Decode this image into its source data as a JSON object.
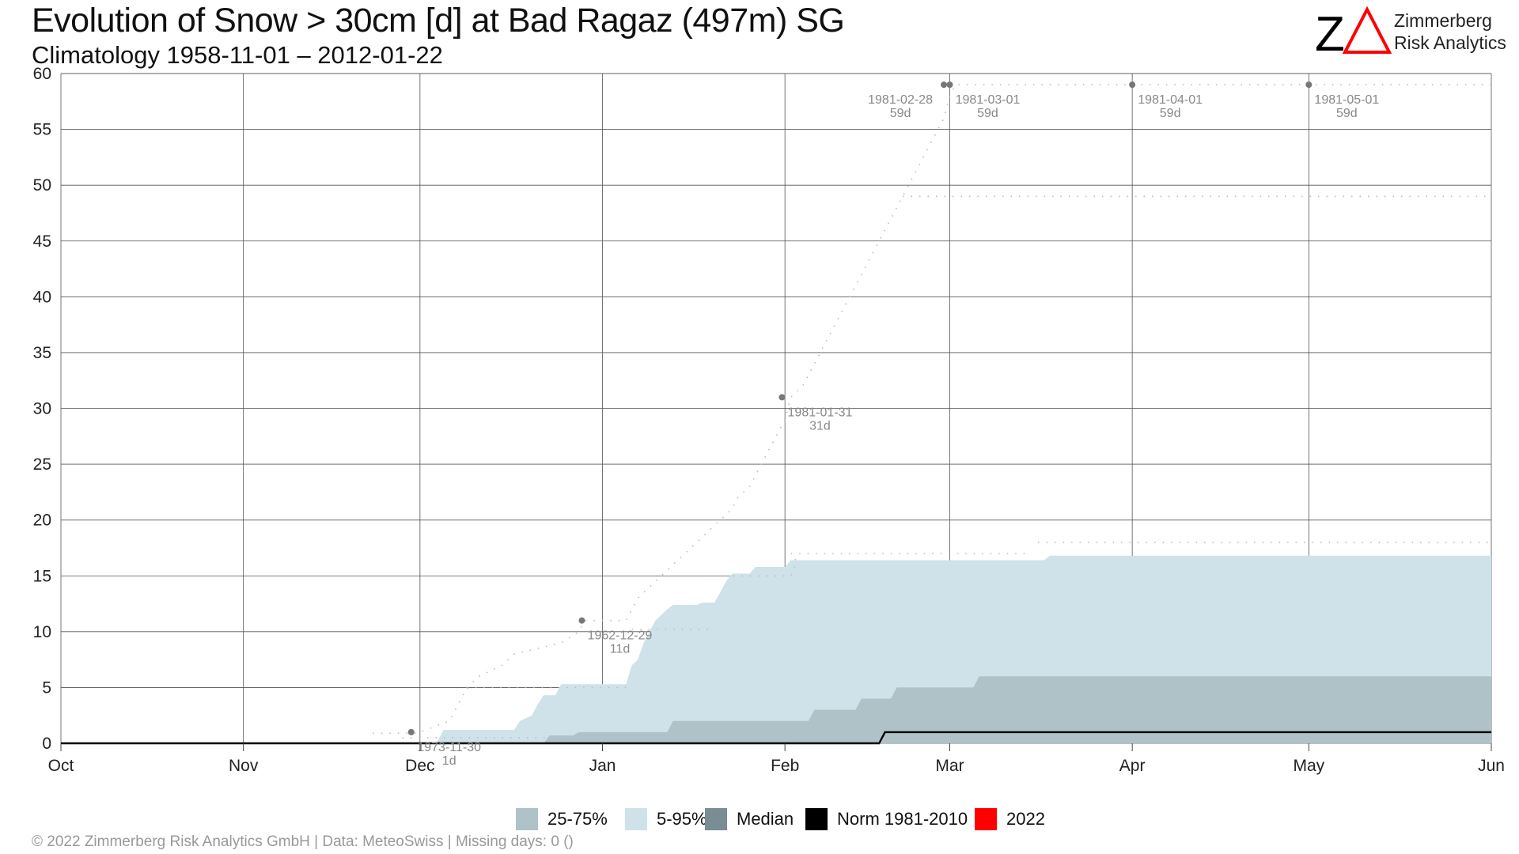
{
  "chart_data": {
    "type": "area",
    "title": "Evolution of Snow > 30cm [d] at Bad Ragaz (497m) SG",
    "subtitle": "Climatology 1958-11-01 – 2012-01-22",
    "xlabel": "",
    "ylabel": "",
    "x_ticks": [
      "Oct",
      "Nov",
      "Dec",
      "Jan",
      "Feb",
      "Mar",
      "Apr",
      "May",
      "Jun"
    ],
    "x_tick_days": [
      0,
      31,
      61,
      92,
      123,
      151,
      182,
      212,
      243
    ],
    "ylim": [
      0,
      60
    ],
    "y_ticks": [
      0,
      5,
      10,
      15,
      20,
      25,
      30,
      35,
      40,
      45,
      50,
      55,
      60
    ],
    "y_tick_labels": [
      "0",
      "5",
      "10",
      "15",
      "20",
      "25",
      "30",
      "35",
      "40",
      "45",
      "50",
      "55",
      "60"
    ],
    "grid": true,
    "legend_position": "bottom",
    "series": [
      {
        "name": "5-95%",
        "color": "#cfe2e9",
        "upper": [
          [
            63,
            0
          ],
          [
            64,
            0.2
          ],
          [
            65,
            1.2
          ],
          [
            70,
            1.2
          ],
          [
            77,
            1.2
          ],
          [
            78,
            2
          ],
          [
            80,
            2.5
          ],
          [
            81,
            3.5
          ],
          [
            82,
            4.3
          ],
          [
            84,
            4.3
          ],
          [
            85,
            5.3
          ],
          [
            90,
            5.3
          ],
          [
            92,
            5.3
          ],
          [
            96,
            5.3
          ],
          [
            97,
            7
          ],
          [
            98,
            7.5
          ],
          [
            99,
            9
          ],
          [
            100,
            10
          ],
          [
            101,
            11
          ],
          [
            103,
            12
          ],
          [
            104,
            12.4
          ],
          [
            108,
            12.4
          ],
          [
            109,
            12.6
          ],
          [
            111,
            12.6
          ],
          [
            112,
            13.5
          ],
          [
            113,
            14.5
          ],
          [
            114,
            15.2
          ],
          [
            117,
            15.2
          ],
          [
            118,
            15.8
          ],
          [
            123,
            15.8
          ],
          [
            124,
            16.4
          ],
          [
            131,
            16.4
          ],
          [
            139,
            16.4
          ],
          [
            140,
            16.4
          ],
          [
            160,
            16.4
          ],
          [
            167,
            16.4
          ],
          [
            168,
            16.8
          ],
          [
            243,
            16.8
          ]
        ],
        "lower": [
          [
            63,
            0
          ],
          [
            243,
            0
          ]
        ]
      },
      {
        "name": "25-75%",
        "color": "#afc2c8",
        "upper": [
          [
            82,
            0
          ],
          [
            83,
            0.7
          ],
          [
            87,
            0.7
          ],
          [
            88,
            1
          ],
          [
            103,
            1
          ],
          [
            104,
            2
          ],
          [
            127,
            2
          ],
          [
            128,
            3
          ],
          [
            135,
            3
          ],
          [
            136,
            4
          ],
          [
            141,
            4
          ],
          [
            142,
            5
          ],
          [
            155,
            5
          ],
          [
            156,
            6
          ],
          [
            243,
            6
          ]
        ],
        "lower": [
          [
            82,
            0
          ],
          [
            243,
            0
          ]
        ]
      },
      {
        "name": "Median",
        "color": "#7a8c94",
        "values": [
          [
            0,
            0
          ],
          [
            139,
            0
          ],
          [
            140,
            1
          ],
          [
            243,
            1
          ]
        ]
      },
      {
        "name": "Norm 1981-2010",
        "color": "#000000",
        "values": [
          [
            0,
            0
          ],
          [
            139,
            0
          ],
          [
            140,
            1
          ],
          [
            243,
            1
          ]
        ]
      },
      {
        "name": "2022",
        "color": "#ff0000",
        "values": []
      }
    ],
    "record_dotted": [
      [
        53,
        0.9
      ],
      [
        60,
        0.9
      ],
      [
        61,
        1
      ],
      [
        66,
        2
      ],
      [
        67,
        3
      ],
      [
        68,
        4
      ],
      [
        69,
        5
      ],
      [
        71,
        6
      ],
      [
        75,
        7
      ],
      [
        77,
        8
      ],
      [
        85,
        9
      ],
      [
        88,
        10
      ],
      [
        89,
        11
      ],
      [
        92,
        11
      ],
      [
        96,
        11
      ],
      [
        97,
        12
      ],
      [
        98,
        13
      ],
      [
        100,
        14
      ],
      [
        102,
        15
      ],
      [
        104,
        16
      ],
      [
        106,
        17
      ],
      [
        108,
        18
      ],
      [
        110,
        19
      ],
      [
        112,
        20
      ],
      [
        114,
        21
      ],
      [
        115,
        22
      ],
      [
        117,
        23
      ],
      [
        118,
        24
      ],
      [
        119,
        25
      ],
      [
        120,
        26
      ],
      [
        121,
        27
      ],
      [
        122,
        28
      ],
      [
        123,
        29
      ],
      [
        123.5,
        30
      ],
      [
        124,
        31
      ],
      [
        126,
        32
      ],
      [
        128,
        34
      ],
      [
        130,
        36
      ],
      [
        132,
        38
      ],
      [
        134,
        40
      ],
      [
        136,
        42
      ],
      [
        138,
        44
      ],
      [
        140,
        46
      ],
      [
        142,
        48
      ],
      [
        144,
        50
      ],
      [
        146,
        52
      ],
      [
        148,
        54
      ],
      [
        150,
        56
      ],
      [
        151,
        58
      ],
      [
        152,
        59
      ],
      [
        153,
        59
      ],
      [
        243,
        59
      ]
    ],
    "secondary_dotted": [
      [
        61,
        2
      ],
      [
        97,
        2
      ],
      [
        97,
        3
      ],
      [
        111,
        3
      ],
      [
        120,
        3
      ],
      [
        120,
        6
      ],
      [
        70,
        6
      ],
      [
        120,
        6
      ]
    ],
    "extra_dotted": [
      [
        [
          69,
          4.9
        ],
        [
          70,
          5
        ],
        [
          97,
          5
        ]
      ],
      [
        [
          110,
          15
        ],
        [
          124,
          15
        ],
        [
          125,
          16.3
        ],
        [
          124,
          17
        ],
        [
          164,
          17
        ]
      ],
      [
        [
          166,
          18
        ],
        [
          243,
          18
        ]
      ],
      [
        [
          143,
          49
        ],
        [
          243,
          49
        ]
      ],
      [
        [
          97,
          10.2
        ],
        [
          110,
          10.2
        ]
      ],
      [
        [
          58,
          0.5
        ],
        [
          84,
          0.5
        ]
      ]
    ],
    "annotations": [
      {
        "x": 59.5,
        "y": 1,
        "date": "1973-11-30",
        "value": "1d"
      },
      {
        "x": 88.5,
        "y": 11,
        "date": "1962-12-29",
        "value": "11d"
      },
      {
        "x": 122.5,
        "y": 31,
        "date": "1981-01-31",
        "value": "31d"
      },
      {
        "x": 150,
        "y": 59,
        "date": "1981-02-28",
        "value": "59d"
      },
      {
        "x": 151,
        "y": 59,
        "date": "1981-03-01",
        "value": "59d"
      },
      {
        "x": 182,
        "y": 59,
        "date": "1981-04-01",
        "value": "59d"
      },
      {
        "x": 212,
        "y": 59,
        "date": "1981-05-01",
        "value": "59d"
      }
    ]
  },
  "logo": {
    "mark": "ZΔ",
    "line1": "Zimmerberg",
    "line2": "Risk Analytics",
    "accent_color": "#ff0000"
  },
  "legend": {
    "items": [
      {
        "label": "25-75%",
        "color": "#afc2c8"
      },
      {
        "label": "5-95%",
        "color": "#cfe2e9"
      },
      {
        "label": "Median",
        "color": "#7a8c94"
      },
      {
        "label": "Norm 1981-2010",
        "color": "#000000"
      },
      {
        "label": "2022",
        "color": "#ff0000"
      }
    ]
  },
  "footer": "©  2022 Zimmerberg Risk Analytics GmbH | Data: MeteoSwiss | Missing days: 0 ()"
}
